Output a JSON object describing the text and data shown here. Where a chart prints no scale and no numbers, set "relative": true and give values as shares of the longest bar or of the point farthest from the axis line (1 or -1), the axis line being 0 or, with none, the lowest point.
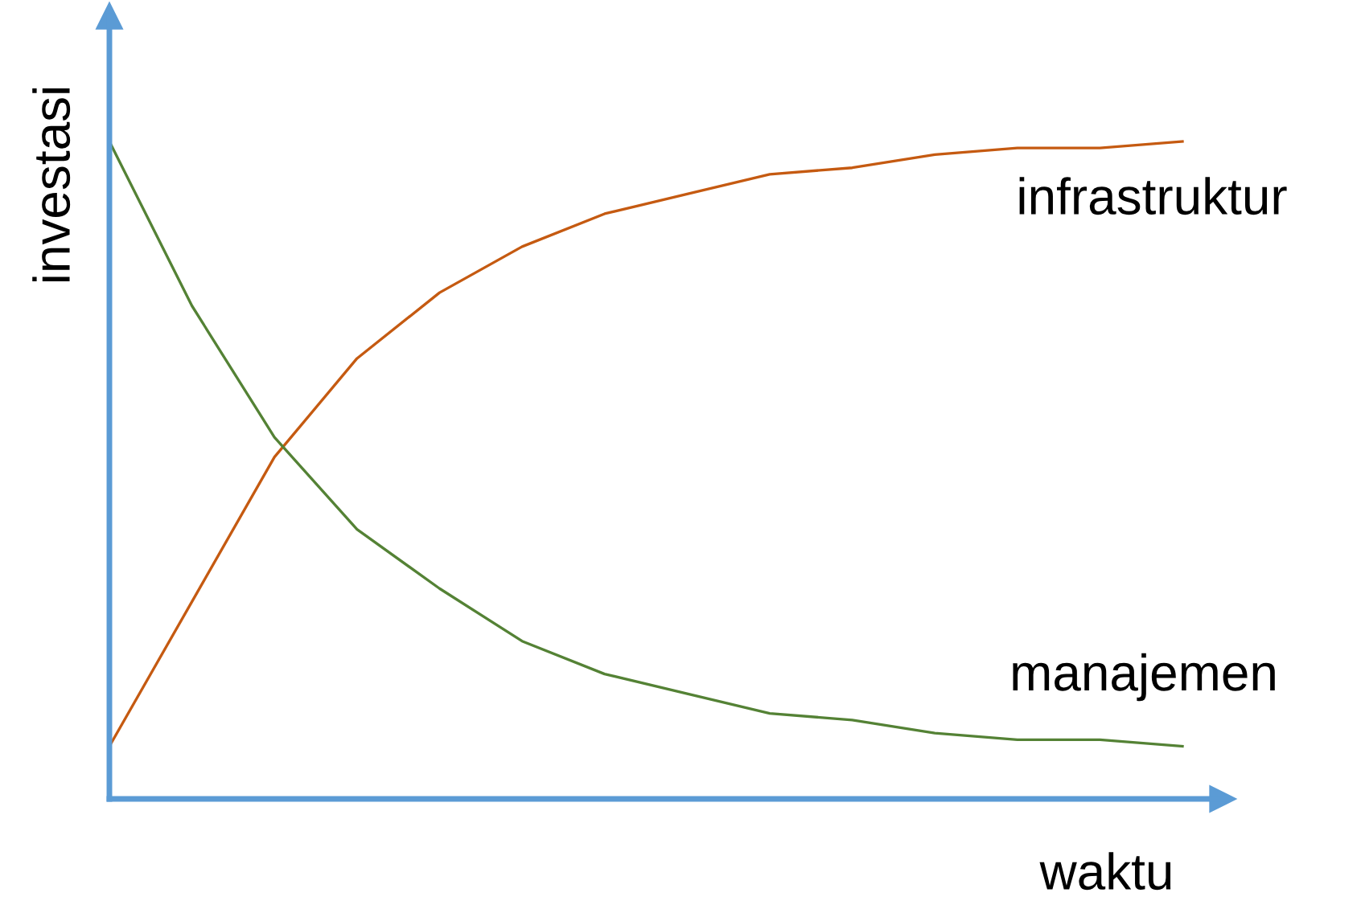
{
  "chart_data": {
    "type": "line",
    "relative": true,
    "xlabel": "waktu",
    "ylabel": "investasi",
    "categories": [
      null,
      null,
      null,
      null,
      null,
      null,
      null,
      null,
      null,
      null,
      null,
      null,
      null,
      null
    ],
    "series": [
      {
        "name": "infrastruktur",
        "color": "#c55a11",
        "values": [
          0.08,
          0.3,
          0.52,
          0.67,
          0.77,
          0.84,
          0.89,
          0.92,
          0.95,
          0.96,
          0.98,
          0.99,
          0.99,
          1.0
        ]
      },
      {
        "name": "manajemen",
        "color": "#548235",
        "values": [
          1.0,
          0.75,
          0.55,
          0.41,
          0.32,
          0.24,
          0.19,
          0.16,
          0.13,
          0.12,
          0.1,
          0.09,
          0.09,
          0.08
        ]
      }
    ],
    "legend": false,
    "marker": "none",
    "line_style": "solid"
  }
}
